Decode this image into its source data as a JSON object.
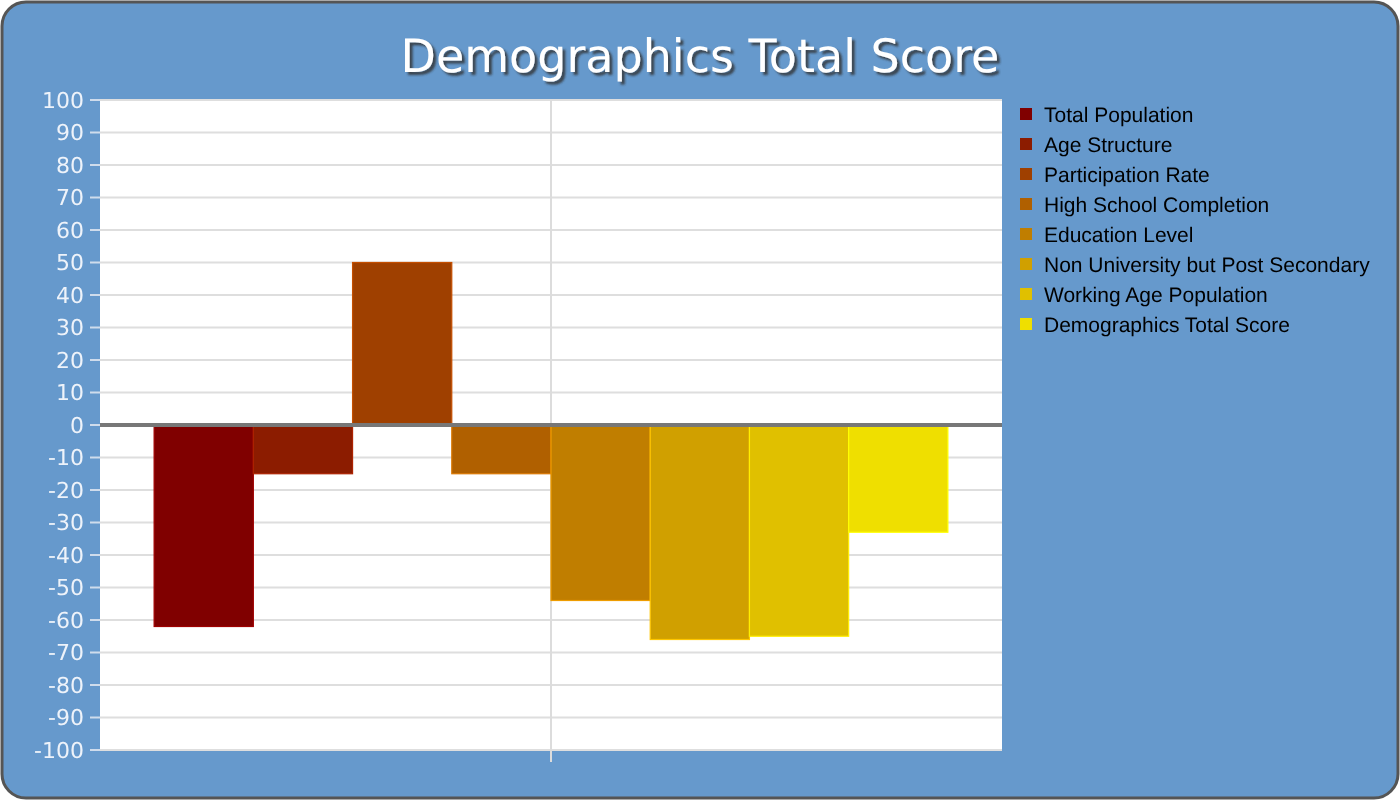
{
  "chart_data": {
    "type": "bar",
    "title": "Demographics Total Score",
    "categories": [
      null
    ],
    "series": [
      {
        "name": "Total Population",
        "color": "#800000",
        "values": [
          -62
        ]
      },
      {
        "name": "Age Structure",
        "color": "#8c1c00",
        "values": [
          -15
        ]
      },
      {
        "name": "Participation Rate",
        "color": "#9f4000",
        "values": [
          50
        ]
      },
      {
        "name": "High School Completion",
        "color": "#b06000",
        "values": [
          -15
        ]
      },
      {
        "name": "Education Level",
        "color": "#c07e00",
        "values": [
          -54
        ]
      },
      {
        "name": "Non University but Post Secondary",
        "color": "#d0a000",
        "values": [
          -66
        ]
      },
      {
        "name": "Working Age Population",
        "color": "#e0c000",
        "values": [
          -65
        ]
      },
      {
        "name": "Demographics Total Score",
        "color": "#efdf00",
        "values": [
          -33
        ]
      }
    ],
    "ylim": [
      -100,
      100
    ],
    "yticks": [
      -100,
      -90,
      -80,
      -70,
      -60,
      -50,
      -40,
      -30,
      -20,
      -10,
      0,
      10,
      20,
      30,
      40,
      50,
      60,
      70,
      80,
      90,
      100
    ],
    "grid": true,
    "legend": "right"
  }
}
